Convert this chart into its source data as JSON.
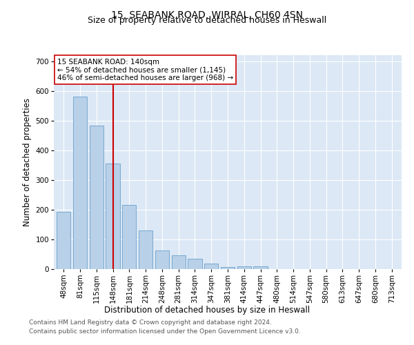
{
  "title_line1": "15, SEABANK ROAD, WIRRAL, CH60 4SN",
  "title_line2": "Size of property relative to detached houses in Heswall",
  "xlabel": "Distribution of detached houses by size in Heswall",
  "ylabel": "Number of detached properties",
  "categories": [
    "48sqm",
    "81sqm",
    "115sqm",
    "148sqm",
    "181sqm",
    "214sqm",
    "248sqm",
    "281sqm",
    "314sqm",
    "347sqm",
    "381sqm",
    "414sqm",
    "447sqm",
    "480sqm",
    "514sqm",
    "547sqm",
    "580sqm",
    "613sqm",
    "647sqm",
    "680sqm",
    "713sqm"
  ],
  "values": [
    192,
    580,
    483,
    355,
    215,
    130,
    63,
    47,
    35,
    18,
    7,
    10,
    10,
    0,
    0,
    0,
    0,
    0,
    0,
    0,
    0
  ],
  "bar_color": "#b8d0e8",
  "bar_edge_color": "#6aa0cc",
  "vline_x_index": 3,
  "vline_color": "#cc0000",
  "annotation_text": "15 SEABANK ROAD: 140sqm\n← 54% of detached houses are smaller (1,145)\n46% of semi-detached houses are larger (968) →",
  "annotation_box_color": "#ffffff",
  "annotation_box_edge_color": "#cc0000",
  "ylim": [
    0,
    720
  ],
  "yticks": [
    0,
    100,
    200,
    300,
    400,
    500,
    600,
    700
  ],
  "background_color": "#dce8f5",
  "footer_line1": "Contains HM Land Registry data © Crown copyright and database right 2024.",
  "footer_line2": "Contains public sector information licensed under the Open Government Licence v3.0.",
  "title_fontsize": 10,
  "subtitle_fontsize": 9,
  "axis_label_fontsize": 8.5,
  "tick_fontsize": 7.5,
  "annotation_fontsize": 7.5,
  "footer_fontsize": 6.5
}
